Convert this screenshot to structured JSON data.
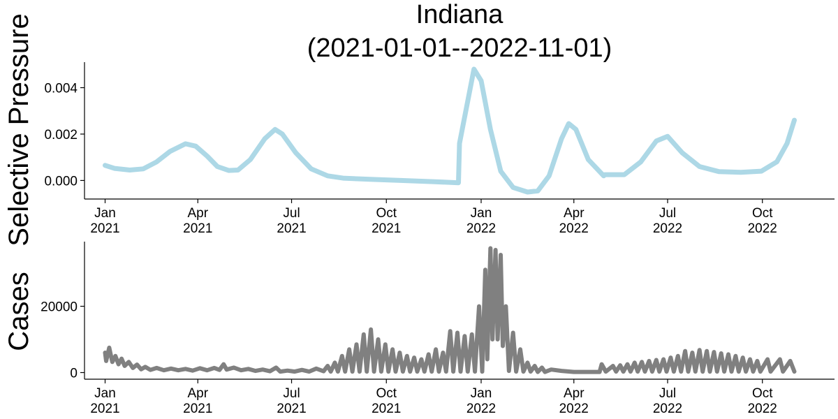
{
  "chart_data": [
    {
      "type": "line",
      "title": "Indiana\n(2021-01-01--2022-11-01)",
      "title_lines": [
        "Indiana",
        "(2021-01-01--2022-11-01)"
      ],
      "ylabel": "Selective Pressure",
      "xlabel": "",
      "x_axis": "date",
      "xlim": [
        "2020-12-12",
        "2022-12-10"
      ],
      "ylim": [
        -0.0008,
        0.0051
      ],
      "yticks": [
        0.0,
        0.002,
        0.004
      ],
      "ytick_labels": [
        "0.000",
        "0.002",
        "0.004"
      ],
      "xticks": [
        "2021-01-01",
        "2021-04-01",
        "2021-07-01",
        "2021-10-01",
        "2022-01-01",
        "2022-04-01",
        "2022-07-01",
        "2022-10-01"
      ],
      "xtick_labels": [
        [
          "Jan",
          "2021"
        ],
        [
          "Apr",
          "2021"
        ],
        [
          "Jul",
          "2021"
        ],
        [
          "Oct",
          "2021"
        ],
        [
          "Jan",
          "2022"
        ],
        [
          "Apr",
          "2022"
        ],
        [
          "Jul",
          "2022"
        ],
        [
          "Oct",
          "2022"
        ]
      ],
      "grid": false,
      "legend": false,
      "line_color": "#add8e6",
      "series": [
        {
          "points": [
            [
              "2021-01-01",
              0.00065
            ],
            [
              "2021-01-10",
              0.00052
            ],
            [
              "2021-01-25",
              0.00045
            ],
            [
              "2021-02-07",
              0.0005
            ],
            [
              "2021-02-20",
              0.0008
            ],
            [
              "2021-03-05",
              0.00125
            ],
            [
              "2021-03-20",
              0.00158
            ],
            [
              "2021-03-30",
              0.00148
            ],
            [
              "2021-04-10",
              0.00105
            ],
            [
              "2021-04-20",
              0.0006
            ],
            [
              "2021-05-01",
              0.00043
            ],
            [
              "2021-05-10",
              0.00045
            ],
            [
              "2021-05-22",
              0.0009
            ],
            [
              "2021-06-05",
              0.0018
            ],
            [
              "2021-06-15",
              0.0022
            ],
            [
              "2021-06-22",
              0.002
            ],
            [
              "2021-07-05",
              0.0012
            ],
            [
              "2021-07-20",
              0.0005
            ],
            [
              "2021-08-05",
              0.0002
            ],
            [
              "2021-08-20",
              0.0001
            ],
            [
              "2021-09-15",
              5e-05
            ],
            [
              "2021-10-15",
              0.0
            ],
            [
              "2021-11-15",
              -5e-05
            ],
            [
              "2021-12-10",
              -0.0001
            ],
            [
              "2021-12-11",
              0.0016
            ],
            [
              "2021-12-25",
              0.0048
            ],
            [
              "2022-01-01",
              0.0043
            ],
            [
              "2022-01-10",
              0.0022
            ],
            [
              "2022-01-20",
              0.0004
            ],
            [
              "2022-02-01",
              -0.0003
            ],
            [
              "2022-02-15",
              -0.0005
            ],
            [
              "2022-02-25",
              -0.00045
            ],
            [
              "2022-03-08",
              0.0002
            ],
            [
              "2022-03-20",
              0.0018
            ],
            [
              "2022-03-27",
              0.00245
            ],
            [
              "2022-04-03",
              0.0022
            ],
            [
              "2022-04-15",
              0.0009
            ],
            [
              "2022-04-30",
              0.0002
            ],
            [
              "2022-05-01",
              0.00025
            ],
            [
              "2022-05-20",
              0.00025
            ],
            [
              "2022-06-05",
              0.0008
            ],
            [
              "2022-06-20",
              0.0017
            ],
            [
              "2022-07-01",
              0.0019
            ],
            [
              "2022-07-15",
              0.0012
            ],
            [
              "2022-08-01",
              0.0006
            ],
            [
              "2022-08-20",
              0.00038
            ],
            [
              "2022-09-10",
              0.00035
            ],
            [
              "2022-09-30",
              0.0004
            ],
            [
              "2022-10-15",
              0.0008
            ],
            [
              "2022-10-25",
              0.0016
            ],
            [
              "2022-11-01",
              0.0026
            ]
          ]
        }
      ]
    },
    {
      "type": "line",
      "title": "",
      "ylabel": "Cases",
      "xlabel": "",
      "x_axis": "date",
      "xlim": [
        "2020-12-12",
        "2022-12-10"
      ],
      "ylim": [
        -2000,
        39500
      ],
      "yticks": [
        0,
        20000
      ],
      "ytick_labels": [
        "0",
        "20000"
      ],
      "xticks": [
        "2021-01-01",
        "2021-04-01",
        "2021-07-01",
        "2021-10-01",
        "2022-01-01",
        "2022-04-01",
        "2022-07-01",
        "2022-10-01"
      ],
      "xtick_labels": [
        [
          "Jan",
          "2021"
        ],
        [
          "Apr",
          "2021"
        ],
        [
          "Jul",
          "2021"
        ],
        [
          "Oct",
          "2021"
        ],
        [
          "Jan",
          "2022"
        ],
        [
          "Apr",
          "2022"
        ],
        [
          "Jul",
          "2022"
        ],
        [
          "Oct",
          "2022"
        ]
      ],
      "grid": false,
      "legend": false,
      "line_color": "#808080",
      "series": [
        {
          "points": [
            [
              "2021-01-01",
              6000
            ],
            [
              "2021-01-02",
              3500
            ],
            [
              "2021-01-05",
              7500
            ],
            [
              "2021-01-08",
              3200
            ],
            [
              "2021-01-11",
              5000
            ],
            [
              "2021-01-14",
              2500
            ],
            [
              "2021-01-17",
              4200
            ],
            [
              "2021-01-20",
              2000
            ],
            [
              "2021-01-24",
              3200
            ],
            [
              "2021-01-28",
              1400
            ],
            [
              "2021-02-01",
              2400
            ],
            [
              "2021-02-05",
              1000
            ],
            [
              "2021-02-09",
              1700
            ],
            [
              "2021-02-14",
              800
            ],
            [
              "2021-02-20",
              1400
            ],
            [
              "2021-02-27",
              700
            ],
            [
              "2021-03-06",
              1200
            ],
            [
              "2021-03-13",
              700
            ],
            [
              "2021-03-20",
              1100
            ],
            [
              "2021-03-27",
              600
            ],
            [
              "2021-04-03",
              1300
            ],
            [
              "2021-04-10",
              700
            ],
            [
              "2021-04-17",
              1400
            ],
            [
              "2021-04-22",
              800
            ],
            [
              "2021-04-26",
              2500
            ],
            [
              "2021-04-29",
              900
            ],
            [
              "2021-05-06",
              1500
            ],
            [
              "2021-05-13",
              700
            ],
            [
              "2021-05-20",
              1100
            ],
            [
              "2021-05-27",
              500
            ],
            [
              "2021-06-03",
              900
            ],
            [
              "2021-06-10",
              400
            ],
            [
              "2021-06-16",
              1500
            ],
            [
              "2021-06-20",
              300
            ],
            [
              "2021-06-27",
              600
            ],
            [
              "2021-07-04",
              300
            ],
            [
              "2021-07-11",
              800
            ],
            [
              "2021-07-18",
              300
            ],
            [
              "2021-07-25",
              1200
            ],
            [
              "2021-08-01",
              400
            ],
            [
              "2021-08-05",
              2000
            ],
            [
              "2021-08-08",
              300
            ],
            [
              "2021-08-12",
              3000
            ],
            [
              "2021-08-15",
              300
            ],
            [
              "2021-08-19",
              5000
            ],
            [
              "2021-08-22",
              300
            ],
            [
              "2021-08-26",
              7000
            ],
            [
              "2021-08-29",
              300
            ],
            [
              "2021-09-02",
              8500
            ],
            [
              "2021-09-05",
              300
            ],
            [
              "2021-09-09",
              11500
            ],
            [
              "2021-09-12",
              300
            ],
            [
              "2021-09-16",
              13000
            ],
            [
              "2021-09-19",
              300
            ],
            [
              "2021-09-23",
              10000
            ],
            [
              "2021-09-26",
              300
            ],
            [
              "2021-09-30",
              8500
            ],
            [
              "2021-10-03",
              300
            ],
            [
              "2021-10-07",
              7000
            ],
            [
              "2021-10-10",
              300
            ],
            [
              "2021-10-14",
              6000
            ],
            [
              "2021-10-17",
              300
            ],
            [
              "2021-10-21",
              5000
            ],
            [
              "2021-10-24",
              300
            ],
            [
              "2021-10-28",
              4500
            ],
            [
              "2021-10-31",
              300
            ],
            [
              "2021-11-04",
              4000
            ],
            [
              "2021-11-07",
              300
            ],
            [
              "2021-11-11",
              5500
            ],
            [
              "2021-11-14",
              300
            ],
            [
              "2021-11-18",
              7000
            ],
            [
              "2021-11-21",
              300
            ],
            [
              "2021-11-25",
              6000
            ],
            [
              "2021-11-28",
              300
            ],
            [
              "2021-12-02",
              12500
            ],
            [
              "2021-12-05",
              300
            ],
            [
              "2021-12-09",
              12000
            ],
            [
              "2021-12-12",
              300
            ],
            [
              "2021-12-16",
              11000
            ],
            [
              "2021-12-19",
              300
            ],
            [
              "2021-12-23",
              11500
            ],
            [
              "2021-12-26",
              300
            ],
            [
              "2021-12-30",
              20000
            ],
            [
              "2022-01-02",
              300
            ],
            [
              "2022-01-05",
              31000
            ],
            [
              "2022-01-07",
              4000
            ],
            [
              "2022-01-10",
              37500
            ],
            [
              "2022-01-12",
              10000
            ],
            [
              "2022-01-15",
              37000
            ],
            [
              "2022-01-17",
              10000
            ],
            [
              "2022-01-20",
              35500
            ],
            [
              "2022-01-22",
              8000
            ],
            [
              "2022-01-25",
              20000
            ],
            [
              "2022-01-28",
              500
            ],
            [
              "2022-02-01",
              12000
            ],
            [
              "2022-02-04",
              300
            ],
            [
              "2022-02-08",
              7000
            ],
            [
              "2022-02-11",
              300
            ],
            [
              "2022-02-15",
              3000
            ],
            [
              "2022-02-18",
              300
            ],
            [
              "2022-02-22",
              2000
            ],
            [
              "2022-02-25",
              200
            ],
            [
              "2022-03-01",
              1500
            ],
            [
              "2022-03-04",
              200
            ],
            [
              "2022-03-10",
              900
            ],
            [
              "2022-03-20",
              500
            ],
            [
              "2022-04-01",
              200
            ],
            [
              "2022-04-26",
              200
            ],
            [
              "2022-04-28",
              2500
            ],
            [
              "2022-05-02",
              300
            ],
            [
              "2022-05-09",
              2000
            ],
            [
              "2022-05-12",
              300
            ],
            [
              "2022-05-16",
              2200
            ],
            [
              "2022-05-19",
              300
            ],
            [
              "2022-05-23",
              2500
            ],
            [
              "2022-05-26",
              300
            ],
            [
              "2022-05-30",
              3000
            ],
            [
              "2022-06-02",
              300
            ],
            [
              "2022-06-06",
              3200
            ],
            [
              "2022-06-09",
              300
            ],
            [
              "2022-06-13",
              3500
            ],
            [
              "2022-06-16",
              300
            ],
            [
              "2022-06-20",
              3800
            ],
            [
              "2022-06-23",
              300
            ],
            [
              "2022-06-27",
              4000
            ],
            [
              "2022-06-30",
              300
            ],
            [
              "2022-07-04",
              4500
            ],
            [
              "2022-07-07",
              300
            ],
            [
              "2022-07-11",
              5000
            ],
            [
              "2022-07-14",
              300
            ],
            [
              "2022-07-18",
              6500
            ],
            [
              "2022-07-21",
              300
            ],
            [
              "2022-07-25",
              6000
            ],
            [
              "2022-07-28",
              300
            ],
            [
              "2022-08-01",
              6800
            ],
            [
              "2022-08-04",
              300
            ],
            [
              "2022-08-08",
              6500
            ],
            [
              "2022-08-11",
              300
            ],
            [
              "2022-08-15",
              6200
            ],
            [
              "2022-08-18",
              300
            ],
            [
              "2022-08-22",
              5800
            ],
            [
              "2022-08-25",
              300
            ],
            [
              "2022-08-29",
              5500
            ],
            [
              "2022-09-01",
              300
            ],
            [
              "2022-09-05",
              5000
            ],
            [
              "2022-09-08",
              300
            ],
            [
              "2022-09-12",
              4500
            ],
            [
              "2022-09-15",
              300
            ],
            [
              "2022-09-19",
              4000
            ],
            [
              "2022-09-22",
              300
            ],
            [
              "2022-09-26",
              3500
            ],
            [
              "2022-09-29",
              300
            ],
            [
              "2022-10-06",
              4000
            ],
            [
              "2022-10-09",
              300
            ],
            [
              "2022-10-18",
              4000
            ],
            [
              "2022-10-21",
              300
            ],
            [
              "2022-10-28",
              3500
            ],
            [
              "2022-11-01",
              300
            ]
          ]
        }
      ]
    }
  ]
}
